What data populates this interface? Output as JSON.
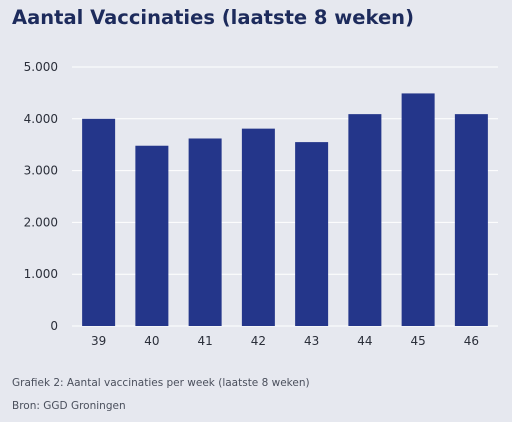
{
  "title": "Aantal Vaccinaties (laatste 8 weken)",
  "caption": "Grafiek 2: Aantal vaccinaties per week (laatste 8 weken)",
  "source": "Bron: GGD Groningen",
  "colors": {
    "bar": "#24368a",
    "background": "#e6e8ef",
    "grid": "#ffffff",
    "axis_text": "#2b2f3a",
    "title": "#1d2b5c"
  },
  "chart_data": {
    "type": "bar",
    "title": "Aantal Vaccinaties (laatste 8 weken)",
    "xlabel": "",
    "ylabel": "",
    "categories": [
      "39",
      "40",
      "41",
      "42",
      "43",
      "44",
      "45",
      "46"
    ],
    "values": [
      4000,
      3480,
      3620,
      3810,
      3550,
      4090,
      4490,
      4090
    ],
    "ylim": [
      0,
      5000
    ],
    "yticks": [
      0,
      1000,
      2000,
      3000,
      4000,
      5000
    ],
    "ytick_labels": [
      "0",
      "1.000",
      "2.000",
      "3.000",
      "4.000",
      "5.000"
    ],
    "grid": true,
    "legend": "none"
  }
}
